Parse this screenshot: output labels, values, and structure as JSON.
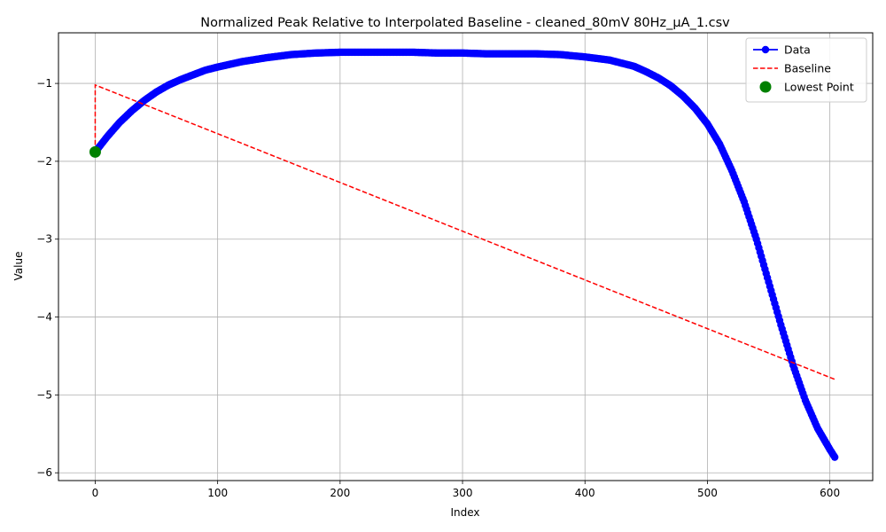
{
  "chart_data": {
    "type": "line",
    "title": "Normalized Peak Relative to Interpolated Baseline - cleaned_80mV 80Hz_µA_1.csv",
    "xlabel": "Index",
    "ylabel": "Value",
    "xlim": [
      -30,
      635
    ],
    "ylim": [
      -6.1,
      -0.35
    ],
    "x_ticks": [
      0,
      100,
      200,
      300,
      400,
      500,
      600
    ],
    "x_tick_labels": [
      "0",
      "100",
      "200",
      "300",
      "400",
      "500",
      "600"
    ],
    "y_ticks": [
      -6,
      -5,
      -4,
      -3,
      -2,
      -1
    ],
    "y_tick_labels": [
      "−6",
      "−5",
      "−4",
      "−3",
      "−2",
      "−1"
    ],
    "grid": true,
    "legend_position": "top-right",
    "series": [
      {
        "name": "Data",
        "style": "line-with-markers",
        "color": "#0000ff",
        "x": [
          0,
          10,
          20,
          30,
          40,
          50,
          60,
          70,
          80,
          90,
          100,
          120,
          140,
          160,
          180,
          200,
          220,
          240,
          260,
          280,
          300,
          320,
          340,
          360,
          380,
          400,
          420,
          440,
          450,
          460,
          470,
          480,
          490,
          500,
          510,
          520,
          530,
          540,
          550,
          560,
          570,
          580,
          590,
          600,
          604
        ],
        "y": [
          -1.88,
          -1.68,
          -1.5,
          -1.35,
          -1.22,
          -1.11,
          -1.02,
          -0.95,
          -0.89,
          -0.83,
          -0.79,
          -0.72,
          -0.67,
          -0.63,
          -0.61,
          -0.6,
          -0.6,
          -0.6,
          -0.6,
          -0.61,
          -0.61,
          -0.62,
          -0.62,
          -0.62,
          -0.63,
          -0.66,
          -0.7,
          -0.78,
          -0.85,
          -0.93,
          -1.03,
          -1.16,
          -1.32,
          -1.52,
          -1.78,
          -2.12,
          -2.52,
          -3.0,
          -3.55,
          -4.1,
          -4.62,
          -5.07,
          -5.43,
          -5.7,
          -5.8
        ]
      },
      {
        "name": "Baseline",
        "style": "dashed",
        "color": "#ff0000",
        "x": [
          0,
          0,
          604
        ],
        "y": [
          -1.88,
          -1.02,
          -4.8
        ]
      },
      {
        "name": "Lowest Point",
        "style": "scatter",
        "color": "#008000",
        "x": [
          0
        ],
        "y": [
          -1.88
        ]
      }
    ]
  }
}
